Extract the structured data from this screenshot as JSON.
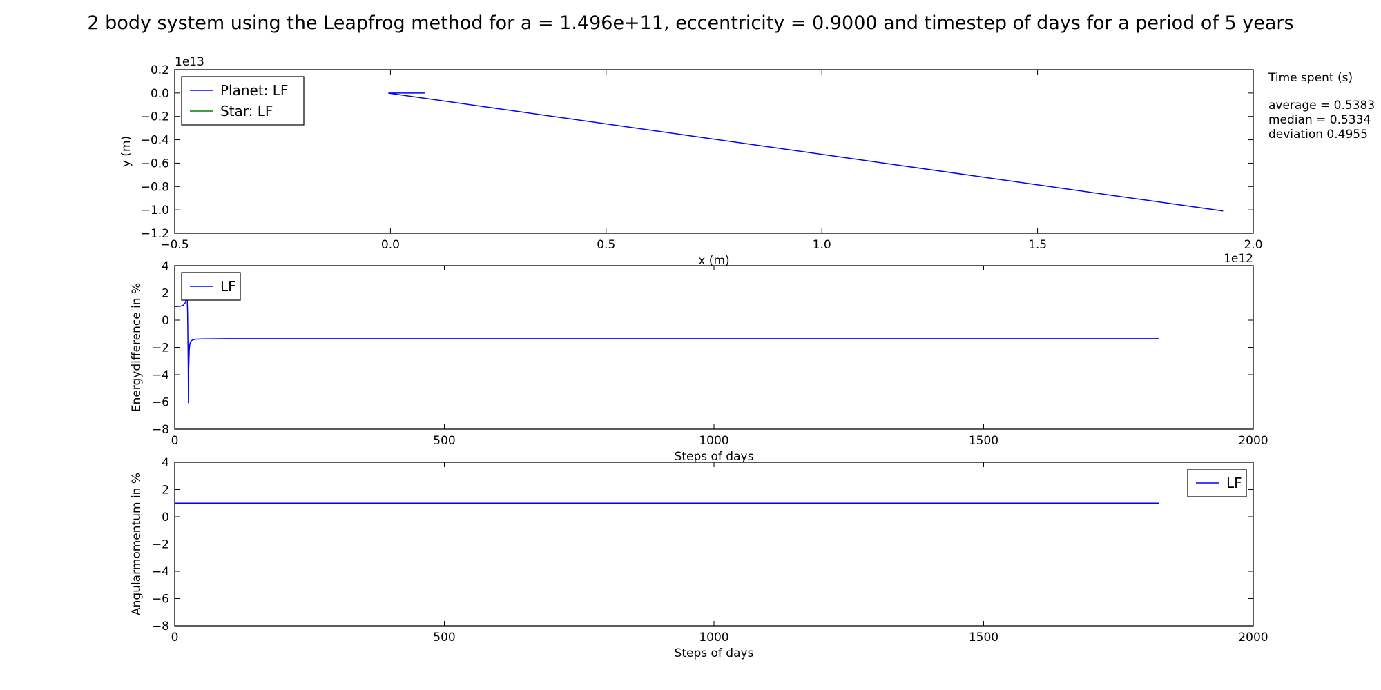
{
  "figure": {
    "title": "2 body system using the Leapfrog method for a = 1.496e+11, eccentricity = 0.9000 and timestep of days for a period of 5 years"
  },
  "side_text": {
    "heading": "Time spent (s)",
    "lines": [
      "average = 0.5383",
      "median = 0.5334",
      "deviation 0.4955"
    ]
  },
  "colors": {
    "planet": "#0000ff",
    "star": "#008000",
    "axis": "#000000"
  },
  "chart_data": [
    {
      "type": "line",
      "name": "orbit",
      "xlabel": "x (m)",
      "ylabel": "y (m)",
      "xlim": [
        -500000000000.0,
        2000000000000.0
      ],
      "ylim": [
        -12000000000000.0,
        2000000000000.0
      ],
      "x_ticks": [
        -500000000000.0,
        0,
        500000000000.0,
        1000000000000.0,
        1500000000000.0,
        2000000000000.0
      ],
      "x_tick_labels": [
        "−0.5",
        "0.0",
        "0.5",
        "1.0",
        "1.5",
        "2.0"
      ],
      "y_ticks": [
        2000000000000.0,
        0,
        -2000000000000.0,
        -4000000000000.0,
        -6000000000000.0,
        -8000000000000.0,
        -10000000000000.0,
        -12000000000000.0
      ],
      "y_tick_labels": [
        "0.2",
        "0.0",
        "−0.2",
        "−0.4",
        "−0.6",
        "−0.8",
        "−1.0",
        "−1.2"
      ],
      "x_offset_label": "1e12",
      "y_offset_label": "1e13",
      "legend_position": "upper-left",
      "series": [
        {
          "name": "Planet: LF",
          "color": "#0000ff",
          "x": [
            80000000000.0,
            0,
            -5000000000.0,
            1930000000000.0
          ],
          "y": [
            0,
            0,
            -10000000000.0,
            -10100000000000.0
          ]
        },
        {
          "name": "Star: LF",
          "color": "#008000",
          "x": [
            0,
            100000000.0
          ],
          "y": [
            0,
            0
          ]
        }
      ]
    },
    {
      "type": "line",
      "name": "energy",
      "xlabel": "Steps of days",
      "ylabel": "Energydifference in %",
      "xlim": [
        0,
        2000
      ],
      "ylim": [
        -8,
        4
      ],
      "x_ticks": [
        0,
        500,
        1000,
        1500,
        2000
      ],
      "x_tick_labels": [
        "0",
        "500",
        "1000",
        "1500",
        "2000"
      ],
      "y_ticks": [
        4,
        2,
        0,
        -2,
        -4,
        -6,
        -8
      ],
      "y_tick_labels": [
        "4",
        "2",
        "0",
        "−2",
        "−4",
        "−6",
        "−8"
      ],
      "legend_position": "upper-left",
      "series": [
        {
          "name": "LF",
          "color": "#0000ff",
          "x": [
            0,
            10,
            16,
            20,
            23,
            24,
            25,
            25.5,
            26,
            27,
            28,
            30,
            33,
            38,
            50,
            100,
            1825
          ],
          "y": [
            1.0,
            1.02,
            1.1,
            1.3,
            1.8,
            0.5,
            -3.0,
            -6.1,
            -3.5,
            -2.2,
            -1.75,
            -1.55,
            -1.45,
            -1.4,
            -1.38,
            -1.36,
            -1.36
          ]
        }
      ]
    },
    {
      "type": "line",
      "name": "angular",
      "xlabel": "Steps of days",
      "ylabel": "Angularmomentum in  %",
      "xlim": [
        0,
        2000
      ],
      "ylim": [
        -8,
        4
      ],
      "x_ticks": [
        0,
        500,
        1000,
        1500,
        2000
      ],
      "x_tick_labels": [
        "0",
        "500",
        "1000",
        "1500",
        "2000"
      ],
      "y_ticks": [
        4,
        2,
        0,
        -2,
        -4,
        -6,
        -8
      ],
      "y_tick_labels": [
        "4",
        "2",
        "0",
        "−2",
        "−4",
        "−6",
        "−8"
      ],
      "legend_position": "upper-right",
      "series": [
        {
          "name": "LF",
          "color": "#0000ff",
          "x": [
            0,
            1825
          ],
          "y": [
            1.0,
            1.0
          ]
        }
      ]
    }
  ]
}
